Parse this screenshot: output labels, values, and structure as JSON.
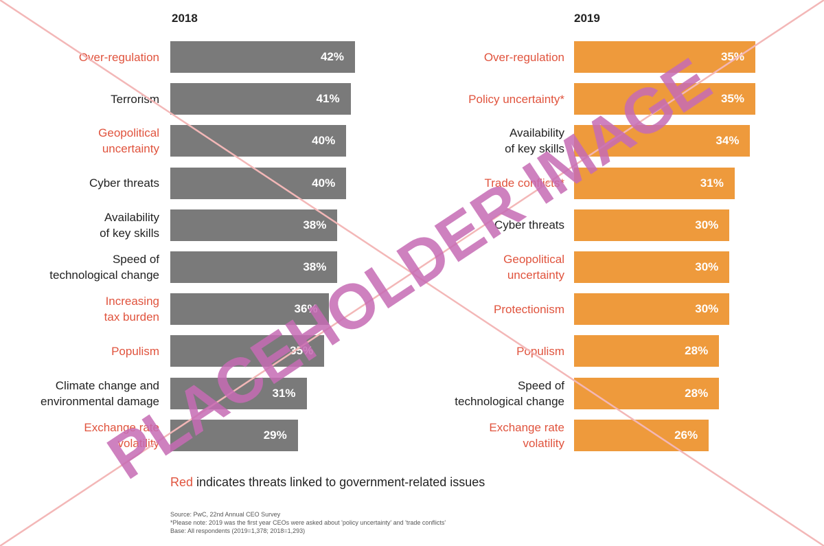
{
  "colors": {
    "bar_2018": "#7a7a7a",
    "bar_2019": "#ee9a3c",
    "government_red": "#e0533d",
    "normal_text": "#222222",
    "watermark_text": "#c66bb4",
    "watermark_lines": "#f3b7b7"
  },
  "chart_data": [
    {
      "type": "bar",
      "title": "2018",
      "orientation": "horizontal",
      "categories": [
        "Over-regulation",
        "Terrorism",
        "Geopolitical\nuncertainty",
        "Cyber threats",
        "Availability\nof key skills",
        "Speed of\ntechnological change",
        "Increasing\ntax burden",
        "Populism",
        "Climate change and\nenvironmental damage",
        "Exchange rate\nvolatility"
      ],
      "values": [
        42,
        41,
        40,
        40,
        38,
        38,
        36,
        35,
        31,
        29
      ],
      "value_labels": [
        "42%",
        "41%",
        "40%",
        "40%",
        "38%",
        "38%",
        "36%",
        "35%",
        "31%",
        "29%"
      ],
      "government_related": [
        true,
        false,
        true,
        false,
        false,
        false,
        true,
        true,
        false,
        true
      ],
      "xlim": [
        0,
        42
      ]
    },
    {
      "type": "bar",
      "title": "2019",
      "orientation": "horizontal",
      "categories": [
        "Over-regulation",
        "Policy uncertainty*",
        "Availability\nof key skills",
        "Trade conflicts*",
        "Cyber threats",
        "Geopolitical\nuncertainty",
        "Protectionism",
        "Populism",
        "Speed of\ntechnological change",
        "Exchange rate\nvolatility"
      ],
      "values": [
        35,
        35,
        34,
        31,
        30,
        30,
        30,
        28,
        28,
        26
      ],
      "value_labels": [
        "35%",
        "35%",
        "34%",
        "31%",
        "30%",
        "30%",
        "30%",
        "28%",
        "28%",
        "26%"
      ],
      "government_related": [
        true,
        true,
        false,
        true,
        false,
        true,
        true,
        true,
        false,
        true
      ],
      "xlim": [
        0,
        35
      ]
    }
  ],
  "legend_note": {
    "red_word": "Red",
    "rest": " indicates threats linked to government-related issues"
  },
  "source": {
    "line1": "Source: PwC, 22nd Annual CEO Survey",
    "line2": "*Please note: 2019 was the first year CEOs were asked about 'policy uncertainty' and 'trade conflicts'",
    "line3": "Base: All respondents (2019=1,378; 2018=1,293)"
  },
  "watermark": {
    "text": "PLACEHOLDER IMAGE"
  }
}
